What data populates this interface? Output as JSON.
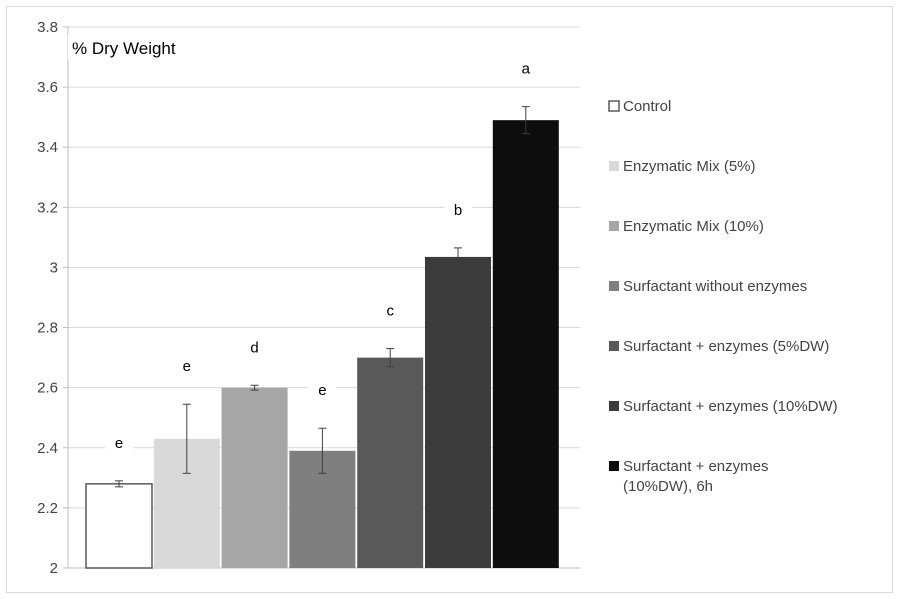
{
  "chart_data": {
    "type": "bar",
    "ylabel": "% Dry Weight",
    "ylim": [
      2,
      3.8
    ],
    "yticks": [
      2,
      2.2,
      2.4,
      2.6,
      2.8,
      3,
      3.2,
      3.4,
      3.6,
      3.8
    ],
    "ytick_labels": [
      "2",
      "2.2",
      "2.4",
      "2.6",
      "2.8",
      "3",
      "3.2",
      "3.4",
      "3.6",
      "3.8"
    ],
    "grid": true,
    "legend_position": "right",
    "bars": [
      {
        "name": "Control",
        "value": 2.28,
        "error": 0.01,
        "letter": "e",
        "color": "#ffffff"
      },
      {
        "name": "Enzymatic Mix (5%)",
        "value": 2.43,
        "error": 0.115,
        "letter": "e",
        "color": "#d9d9d9"
      },
      {
        "name": "Enzymatic Mix (10%)",
        "value": 2.6,
        "error": 0.008,
        "letter": "d",
        "color": "#a6a6a6"
      },
      {
        "name": "Surfactant without enzymes",
        "value": 2.39,
        "error": 0.075,
        "letter": "e",
        "color": "#7f7f7f"
      },
      {
        "name": "Surfactant + enzymes (5%DW)",
        "value": 2.7,
        "error": 0.03,
        "letter": "c",
        "color": "#595959"
      },
      {
        "name": "Surfactant + enzymes (10%DW)",
        "value": 3.035,
        "error": 0.03,
        "letter": "b",
        "color": "#3b3b3b"
      },
      {
        "name": "Surfactant + enzymes (10%DW), 6h",
        "legend_lines": [
          "Surfactant + enzymes",
          "(10%DW), 6h"
        ],
        "value": 3.49,
        "error": 0.045,
        "letter": "a",
        "color": "#0d0d0d"
      }
    ]
  }
}
